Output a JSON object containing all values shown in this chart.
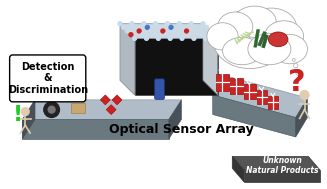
{
  "title": "Optical Sensor Array",
  "subtitle": "Unknown\nNatural Products",
  "detection_label": "Detection\n&\nDiscrimination",
  "bg_color": "#ffffff",
  "green_exclaim": "#22cc22",
  "red_color": "#cc2222",
  "blue_color": "#4477cc",
  "gift_red": "#cc2222",
  "conveyor_top": "#b0bcc8",
  "conveyor_front": "#6a7880",
  "conveyor_side": "#485058",
  "machine_roof": "#d0d8e0",
  "machine_wall_l": "#b0b8c0",
  "machine_wall_r": "#c0c8d0",
  "machine_tunnel": "#111111",
  "dark_block": "#555555",
  "dark_block_front": "#404040",
  "dark_block_side": "#333333",
  "title_fontsize": 9,
  "label_fontsize": 7,
  "small_fontsize": 5.5
}
